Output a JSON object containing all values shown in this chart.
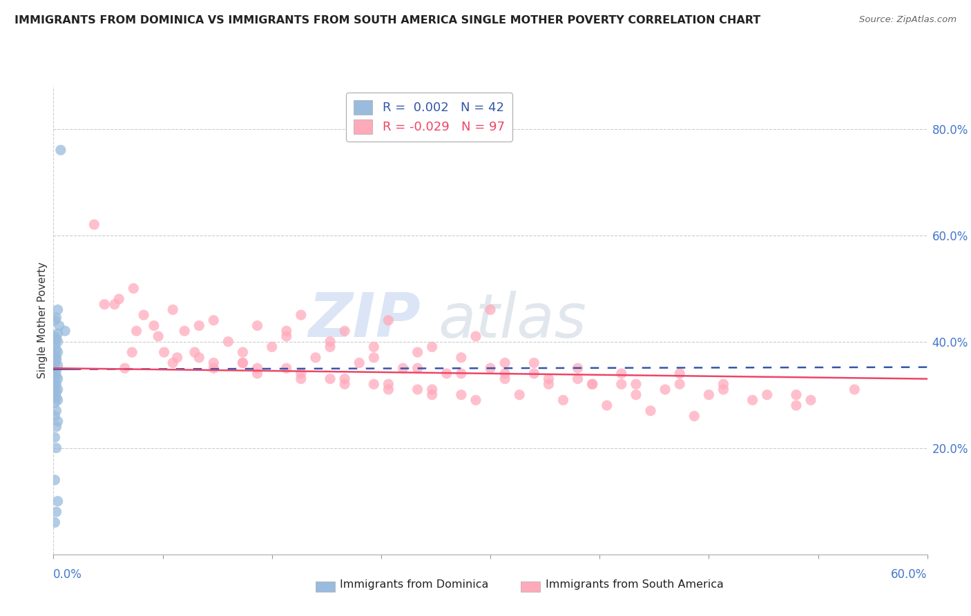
{
  "title": "IMMIGRANTS FROM DOMINICA VS IMMIGRANTS FROM SOUTH AMERICA SINGLE MOTHER POVERTY CORRELATION CHART",
  "source": "Source: ZipAtlas.com",
  "ylabel": "Single Mother Poverty",
  "ylabel_right_ticks": [
    "80.0%",
    "60.0%",
    "40.0%",
    "20.0%"
  ],
  "ylabel_right_vals": [
    0.8,
    0.6,
    0.4,
    0.2
  ],
  "xlim": [
    0.0,
    0.6
  ],
  "ylim": [
    0.0,
    0.88
  ],
  "legend_blue_r": "0.002",
  "legend_blue_n": "42",
  "legend_pink_r": "-0.029",
  "legend_pink_n": "97",
  "blue_color": "#99BBDD",
  "pink_color": "#FFAABB",
  "blue_line_color": "#3355AA",
  "pink_line_color": "#EE4466",
  "blue_scatter_x": [
    0.005,
    0.003,
    0.002,
    0.001,
    0.004,
    0.008,
    0.003,
    0.001,
    0.002,
    0.003,
    0.001,
    0.002,
    0.003,
    0.001,
    0.002,
    0.002,
    0.001,
    0.003,
    0.001,
    0.002,
    0.001,
    0.002,
    0.003,
    0.001,
    0.002,
    0.001,
    0.003,
    0.002,
    0.001,
    0.002,
    0.003,
    0.001,
    0.002,
    0.001,
    0.003,
    0.002,
    0.001,
    0.002,
    0.001,
    0.003,
    0.002,
    0.001
  ],
  "blue_scatter_y": [
    0.76,
    0.46,
    0.445,
    0.44,
    0.43,
    0.42,
    0.415,
    0.41,
    0.405,
    0.4,
    0.395,
    0.385,
    0.38,
    0.375,
    0.37,
    0.365,
    0.36,
    0.355,
    0.35,
    0.345,
    0.34,
    0.335,
    0.33,
    0.325,
    0.32,
    0.315,
    0.31,
    0.305,
    0.3,
    0.295,
    0.29,
    0.285,
    0.27,
    0.26,
    0.25,
    0.24,
    0.22,
    0.2,
    0.14,
    0.1,
    0.08,
    0.06
  ],
  "pink_scatter_x": [
    0.028,
    0.055,
    0.082,
    0.11,
    0.14,
    0.17,
    0.2,
    0.23,
    0.26,
    0.29,
    0.045,
    0.072,
    0.1,
    0.13,
    0.16,
    0.19,
    0.22,
    0.25,
    0.28,
    0.31,
    0.035,
    0.062,
    0.09,
    0.12,
    0.15,
    0.18,
    0.21,
    0.24,
    0.27,
    0.3,
    0.33,
    0.36,
    0.39,
    0.042,
    0.069,
    0.097,
    0.13,
    0.16,
    0.19,
    0.22,
    0.25,
    0.28,
    0.31,
    0.34,
    0.37,
    0.4,
    0.43,
    0.46,
    0.049,
    0.076,
    0.1,
    0.13,
    0.16,
    0.19,
    0.22,
    0.25,
    0.28,
    0.31,
    0.34,
    0.37,
    0.4,
    0.43,
    0.46,
    0.49,
    0.52,
    0.55,
    0.057,
    0.085,
    0.11,
    0.14,
    0.17,
    0.2,
    0.23,
    0.26,
    0.3,
    0.33,
    0.36,
    0.39,
    0.42,
    0.45,
    0.48,
    0.51,
    0.054,
    0.082,
    0.11,
    0.14,
    0.17,
    0.2,
    0.23,
    0.26,
    0.29,
    0.32,
    0.35,
    0.38,
    0.41,
    0.44,
    0.51
  ],
  "pink_scatter_y": [
    0.62,
    0.5,
    0.46,
    0.44,
    0.43,
    0.45,
    0.42,
    0.44,
    0.39,
    0.41,
    0.48,
    0.41,
    0.43,
    0.38,
    0.41,
    0.4,
    0.39,
    0.38,
    0.37,
    0.36,
    0.47,
    0.45,
    0.42,
    0.4,
    0.39,
    0.37,
    0.36,
    0.35,
    0.34,
    0.46,
    0.36,
    0.35,
    0.34,
    0.47,
    0.43,
    0.38,
    0.36,
    0.42,
    0.39,
    0.37,
    0.35,
    0.34,
    0.33,
    0.32,
    0.32,
    0.32,
    0.34,
    0.32,
    0.35,
    0.38,
    0.37,
    0.36,
    0.35,
    0.33,
    0.32,
    0.31,
    0.3,
    0.34,
    0.33,
    0.32,
    0.3,
    0.32,
    0.31,
    0.3,
    0.29,
    0.31,
    0.42,
    0.37,
    0.36,
    0.35,
    0.34,
    0.33,
    0.32,
    0.31,
    0.35,
    0.34,
    0.33,
    0.32,
    0.31,
    0.3,
    0.29,
    0.28,
    0.38,
    0.36,
    0.35,
    0.34,
    0.33,
    0.32,
    0.31,
    0.3,
    0.29,
    0.3,
    0.29,
    0.28,
    0.27,
    0.26,
    0.3
  ],
  "watermark_zip": "ZIP",
  "watermark_atlas": "atlas",
  "bg_color": "#ffffff",
  "grid_color": "#cccccc",
  "blue_line_start_y": 0.348,
  "blue_line_end_y": 0.352,
  "pink_line_start_y": 0.35,
  "pink_line_end_y": 0.33
}
